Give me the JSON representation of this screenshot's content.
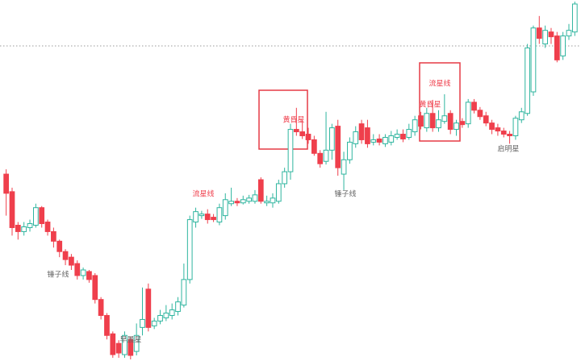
{
  "chart_data": {
    "type": "candlestick",
    "up_color": "#2fb59f",
    "down_color": "#ef3f4c",
    "open": [
      232,
      210,
      168,
      160,
      165,
      168,
      190,
      172,
      160,
      148,
      135,
      128,
      120,
      105,
      110,
      105,
      75,
      55,
      32,
      20,
      6,
      25,
      10,
      40,
      88,
      42,
      48,
      52,
      55,
      60,
      68,
      100,
      172,
      180,
      182,
      178,
      172,
      180,
      195,
      198,
      196,
      198,
      198,
      225,
      196,
      196,
      198,
      220,
      235,
      288,
      285,
      282,
      275,
      258,
      248,
      262,
      292,
      232,
      250,
      270,
      295,
      290,
      272,
      276,
      270,
      272,
      278,
      282,
      278,
      285,
      305,
      290,
      308,
      290,
      298,
      308,
      288,
      298,
      295,
      322,
      312,
      305,
      296,
      290,
      286,
      282,
      280,
      300,
      308,
      335,
      415,
      395,
      410,
      405,
      380,
      405,
      410
    ],
    "high": [
      238,
      215,
      172,
      172,
      175,
      195,
      192,
      175,
      165,
      150,
      138,
      132,
      124,
      115,
      112,
      108,
      78,
      58,
      35,
      24,
      35,
      28,
      45,
      90,
      95,
      52,
      62,
      68,
      70,
      78,
      120,
      180,
      190,
      186,
      188,
      182,
      195,
      208,
      215,
      202,
      205,
      206,
      212,
      228,
      205,
      208,
      225,
      240,
      295,
      315,
      300,
      290,
      280,
      262,
      310,
      295,
      300,
      260,
      278,
      292,
      300,
      300,
      282,
      282,
      282,
      286,
      288,
      288,
      295,
      305,
      310,
      315,
      325,
      312,
      332,
      312,
      300,
      302,
      326,
      326,
      316,
      310,
      300,
      295,
      290,
      286,
      305,
      315,
      395,
      418,
      430,
      418,
      415,
      410,
      410,
      420,
      448
    ],
    "low": [
      180,
      155,
      150,
      155,
      160,
      165,
      165,
      155,
      140,
      128,
      118,
      112,
      100,
      100,
      96,
      70,
      50,
      25,
      2,
      2,
      2,
      0,
      5,
      30,
      35,
      38,
      44,
      48,
      50,
      55,
      65,
      95,
      165,
      176,
      170,
      172,
      168,
      175,
      192,
      192,
      194,
      195,
      195,
      195,
      192,
      190,
      195,
      215,
      225,
      280,
      276,
      270,
      255,
      240,
      244,
      250,
      230,
      212,
      245,
      265,
      270,
      265,
      268,
      268,
      266,
      268,
      275,
      272,
      275,
      280,
      288,
      285,
      285,
      285,
      295,
      282,
      280,
      290,
      290,
      308,
      300,
      292,
      282,
      280,
      278,
      270,
      275,
      296,
      305,
      330,
      395,
      390,
      395,
      372,
      375,
      400,
      405
    ],
    "close": [
      208,
      165,
      160,
      166,
      170,
      190,
      170,
      160,
      148,
      135,
      125,
      118,
      105,
      112,
      100,
      75,
      55,
      30,
      6,
      8,
      30,
      5,
      30,
      50,
      40,
      48,
      55,
      58,
      62,
      72,
      100,
      175,
      185,
      182,
      175,
      175,
      190,
      200,
      198,
      196,
      200,
      202,
      206,
      198,
      198,
      202,
      220,
      235,
      288,
      285,
      280,
      275,
      258,
      245,
      262,
      290,
      240,
      250,
      272,
      285,
      275,
      270,
      275,
      272,
      278,
      280,
      282,
      276,
      288,
      300,
      292,
      308,
      290,
      300,
      305,
      288,
      296,
      294,
      322,
      312,
      304,
      296,
      288,
      286,
      282,
      280,
      302,
      310,
      390,
      415,
      402,
      412,
      404,
      375,
      405,
      412,
      445
    ],
    "annotations": [
      {
        "text": "锤子线",
        "color": "#666666"
      },
      {
        "text": "早晨星",
        "color": "#666666"
      },
      {
        "text": "流星线",
        "color": "#ef3f4c"
      },
      {
        "text": "黄昏星",
        "color": "#ef3f4c"
      },
      {
        "text": "锤子线",
        "color": "#666666"
      },
      {
        "text": "流星线",
        "color": "#ef3f4c"
      },
      {
        "text": "黄昏星",
        "color": "#ef3f4c"
      },
      {
        "text": "启明星",
        "color": "#666666"
      }
    ]
  }
}
